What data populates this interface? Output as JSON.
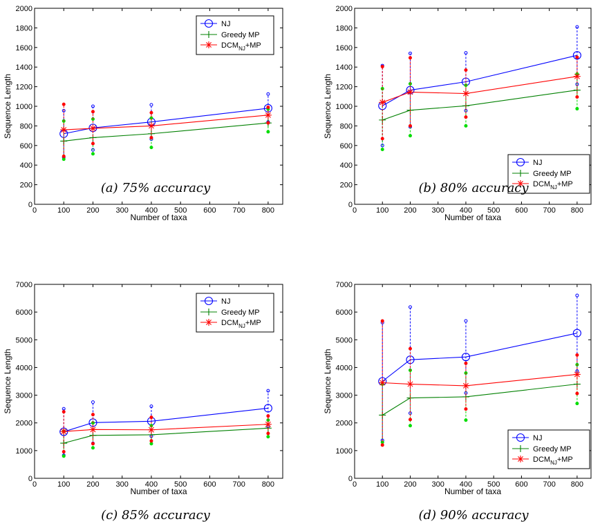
{
  "chart_data": [
    {
      "type": "line",
      "caption": "(a) 75% accuracy",
      "xlabel": "Number of taxa",
      "ylabel": "Sequence Length",
      "xlim": [
        0,
        850
      ],
      "ylim": [
        0,
        2000
      ],
      "xticks": [
        0,
        100,
        200,
        300,
        400,
        500,
        600,
        700,
        800
      ],
      "yticks": [
        0,
        200,
        400,
        600,
        800,
        1000,
        1200,
        1400,
        1600,
        1800,
        2000
      ],
      "legend_position": "top-right",
      "x": [
        100,
        200,
        400,
        800
      ],
      "series": [
        {
          "name": "NJ",
          "values": [
            720,
            780,
            840,
            980
          ],
          "err_low": [
            480,
            555,
            665,
            840
          ],
          "err_high": [
            955,
            1000,
            1015,
            1125
          ]
        },
        {
          "name": "Greedy MP",
          "values": [
            645,
            680,
            720,
            830
          ],
          "err_low": [
            460,
            515,
            580,
            740
          ],
          "err_high": [
            850,
            870,
            880,
            970
          ]
        },
        {
          "name": "DCM_NJ+MP",
          "values": [
            760,
            775,
            800,
            910
          ],
          "err_low": [
            490,
            620,
            680,
            830
          ],
          "err_high": [
            1020,
            945,
            935,
            990
          ]
        }
      ]
    },
    {
      "type": "line",
      "caption": "(b) 80% accuracy",
      "xlabel": "Number of taxa",
      "ylabel": "Sequence Length",
      "xlim": [
        0,
        850
      ],
      "ylim": [
        0,
        2000
      ],
      "xticks": [
        0,
        100,
        200,
        300,
        400,
        500,
        600,
        700,
        800
      ],
      "yticks": [
        0,
        200,
        400,
        600,
        800,
        1000,
        1200,
        1400,
        1600,
        1800,
        2000
      ],
      "legend_position": "center-right",
      "x": [
        100,
        200,
        400,
        800
      ],
      "series": [
        {
          "name": "NJ",
          "values": [
            1005,
            1165,
            1250,
            1520
          ],
          "err_low": [
            600,
            790,
            955,
            1225
          ],
          "err_high": [
            1415,
            1540,
            1545,
            1810
          ]
        },
        {
          "name": "Greedy MP",
          "values": [
            860,
            960,
            1005,
            1165
          ],
          "err_low": [
            560,
            700,
            800,
            975
          ],
          "err_high": [
            1180,
            1230,
            1215,
            1330
          ]
        },
        {
          "name": "DCM_NJ+MP",
          "values": [
            1040,
            1145,
            1130,
            1305
          ],
          "err_low": [
            670,
            800,
            890,
            1095
          ],
          "err_high": [
            1405,
            1495,
            1370,
            1500
          ]
        }
      ]
    },
    {
      "type": "line",
      "caption": "(c) 85% accuracy",
      "xlabel": "Number of taxa",
      "ylabel": "Sequence Length",
      "xlim": [
        0,
        850
      ],
      "ylim": [
        0,
        7000
      ],
      "xticks": [
        0,
        100,
        200,
        300,
        400,
        500,
        600,
        700,
        800
      ],
      "yticks": [
        0,
        1000,
        2000,
        3000,
        4000,
        5000,
        6000,
        7000
      ],
      "legend_position": "top-right",
      "x": [
        100,
        200,
        400,
        800
      ],
      "series": [
        {
          "name": "NJ",
          "values": [
            1680,
            2010,
            2060,
            2530
          ],
          "err_low": [
            830,
            1260,
            1520,
            1870
          ],
          "err_high": [
            2510,
            2750,
            2600,
            3160
          ]
        },
        {
          "name": "Greedy MP",
          "values": [
            1270,
            1550,
            1570,
            1810
          ],
          "err_low": [
            800,
            1100,
            1250,
            1500
          ],
          "err_high": [
            1700,
            2000,
            1900,
            2100
          ]
        },
        {
          "name": "DCM_NJ+MP",
          "values": [
            1690,
            1760,
            1750,
            1950
          ],
          "err_low": [
            960,
            1250,
            1350,
            1620
          ],
          "err_high": [
            2400,
            2300,
            2200,
            2250
          ]
        }
      ]
    },
    {
      "type": "line",
      "caption": "(d) 90% accuracy",
      "xlabel": "Number of taxa",
      "ylabel": "Sequence Length",
      "xlim": [
        0,
        850
      ],
      "ylim": [
        0,
        7000
      ],
      "xticks": [
        0,
        100,
        200,
        300,
        400,
        500,
        600,
        700,
        800
      ],
      "yticks": [
        0,
        1000,
        2000,
        3000,
        4000,
        5000,
        6000,
        7000
      ],
      "legend_position": "bottom-right",
      "x": [
        100,
        200,
        400,
        800
      ],
      "series": [
        {
          "name": "NJ",
          "values": [
            3500,
            4280,
            4380,
            5240
          ],
          "err_low": [
            1370,
            2350,
            3080,
            3870
          ],
          "err_high": [
            5620,
            6180,
            5680,
            6600
          ]
        },
        {
          "name": "Greedy MP",
          "values": [
            2280,
            2900,
            2940,
            3400
          ],
          "err_low": [
            1300,
            1900,
            2100,
            2700
          ],
          "err_high": [
            3400,
            3900,
            3800,
            4100
          ]
        },
        {
          "name": "DCM_NJ+MP",
          "values": [
            3450,
            3400,
            3340,
            3750
          ],
          "err_low": [
            1200,
            2120,
            2500,
            3060
          ],
          "err_high": [
            5680,
            4680,
            4150,
            4450
          ]
        }
      ]
    }
  ],
  "legend": {
    "nj": "NJ",
    "greedy": "Greedy MP",
    "dcm_main": "DCM",
    "dcm_sub": "NJ",
    "dcm_tail": "+MP"
  },
  "colors": {
    "nj": "#0000ff",
    "greedy": "#008000",
    "greedy_error": "#00dd00",
    "dcm": "#ff0000"
  }
}
